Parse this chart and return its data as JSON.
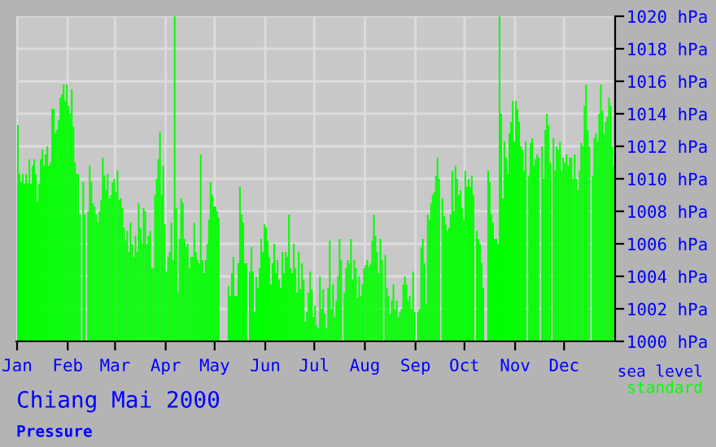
{
  "chart_data": {
    "type": "bar",
    "title": "Chiang Mai 2000",
    "annotations": [
      "Pressure",
      "sea level"
    ],
    "xlim": [
      "1999-12-31T12:00",
      "2001-01-01T06:00"
    ],
    "xticks": [
      {
        "value": "2000-01-01",
        "label": "Jan"
      },
      {
        "value": "2000-02-01",
        "label": "Feb"
      },
      {
        "value": "2000-03-01",
        "label": "Mar"
      },
      {
        "value": "2000-04-01",
        "label": "Apr"
      },
      {
        "value": "2000-05-01",
        "label": "May"
      },
      {
        "value": "2000-06-01",
        "label": "Jun"
      },
      {
        "value": "2000-07-01",
        "label": "Jul"
      },
      {
        "value": "2000-08-01",
        "label": "Aug"
      },
      {
        "value": "2000-09-01",
        "label": "Sep"
      },
      {
        "value": "2000-10-01",
        "label": "Oct"
      },
      {
        "value": "2000-11-01",
        "label": "Nov"
      },
      {
        "value": "2000-12-01",
        "label": "Dec"
      }
    ],
    "ylim": [
      1000,
      1020
    ],
    "yticks": [
      {
        "value": 1000,
        "label": "1000 hPa"
      },
      {
        "value": 1002,
        "label": "1002 hPa"
      },
      {
        "value": 1004,
        "label": "1004 hPa"
      },
      {
        "value": 1006,
        "label": "1006 hPa"
      },
      {
        "value": 1008,
        "label": "1008 hPa"
      },
      {
        "value": 1010,
        "label": "1010 hPa"
      },
      {
        "value": 1012,
        "label": "1012 hPa"
      },
      {
        "value": 1014,
        "label": "1014 hPa"
      },
      {
        "value": 1016,
        "label": "1016 hPa"
      },
      {
        "value": 1018,
        "label": "1018 hPa"
      },
      {
        "value": 1020,
        "label": "1020 hPa"
      }
    ],
    "grid": true,
    "legend": "bottom right",
    "x": [
      "2000-01-01",
      "2000-01-02",
      "2000-01-03",
      "2000-01-04",
      "2000-01-05",
      "2000-01-06",
      "2000-01-07",
      "2000-01-08",
      "2000-01-09",
      "2000-01-10",
      "2000-01-11",
      "2000-01-12",
      "2000-01-13",
      "2000-01-14",
      "2000-01-15",
      "2000-01-16",
      "2000-01-17",
      "2000-01-18",
      "2000-01-19",
      "2000-01-20",
      "2000-01-21",
      "2000-01-22",
      "2000-01-23",
      "2000-01-24",
      "2000-01-25",
      "2000-01-26",
      "2000-01-27",
      "2000-01-28",
      "2000-01-29",
      "2000-01-30",
      "2000-01-31",
      "2000-02-01",
      "2000-02-02",
      "2000-02-03",
      "2000-02-04",
      "2000-02-05",
      "2000-02-06",
      "2000-02-07",
      "2000-02-08",
      "2000-02-09",
      "2000-02-10",
      "2000-02-11",
      "2000-02-12",
      "2000-02-13",
      "2000-02-14",
      "2000-02-15",
      "2000-02-16",
      "2000-02-17",
      "2000-02-18",
      "2000-02-19",
      "2000-02-20",
      "2000-02-21",
      "2000-02-22",
      "2000-02-23",
      "2000-02-24",
      "2000-02-25",
      "2000-02-26",
      "2000-02-27",
      "2000-02-28",
      "2000-02-29",
      "2000-03-01",
      "2000-03-02",
      "2000-03-03",
      "2000-03-04",
      "2000-03-05",
      "2000-03-06",
      "2000-03-07",
      "2000-03-08",
      "2000-03-09",
      "2000-03-10",
      "2000-03-11",
      "2000-03-12",
      "2000-03-13",
      "2000-03-14",
      "2000-03-15",
      "2000-03-16",
      "2000-03-17",
      "2000-03-18",
      "2000-03-19",
      "2000-03-20",
      "2000-03-21",
      "2000-03-22",
      "2000-03-23",
      "2000-03-24",
      "2000-03-25",
      "2000-03-26",
      "2000-03-27",
      "2000-03-28",
      "2000-03-29",
      "2000-03-30",
      "2000-03-31",
      "2000-04-01",
      "2000-04-02",
      "2000-04-03",
      "2000-04-04",
      "2000-04-05",
      "2000-04-06",
      "2000-04-07",
      "2000-04-08",
      "2000-04-09",
      "2000-04-10",
      "2000-04-11",
      "2000-04-12",
      "2000-04-13",
      "2000-04-14",
      "2000-04-15",
      "2000-04-16",
      "2000-04-17",
      "2000-04-18",
      "2000-04-19",
      "2000-04-20",
      "2000-04-21",
      "2000-04-22",
      "2000-04-23",
      "2000-04-24",
      "2000-04-25",
      "2000-04-26",
      "2000-04-27",
      "2000-04-28",
      "2000-04-29",
      "2000-04-30",
      "2000-05-01",
      "2000-05-02",
      "2000-05-03",
      "2000-05-04",
      "2000-05-05",
      "2000-05-06",
      "2000-05-07",
      "2000-05-08",
      "2000-05-09",
      "2000-05-10",
      "2000-05-11",
      "2000-05-12",
      "2000-05-13",
      "2000-05-14",
      "2000-05-15",
      "2000-05-16",
      "2000-05-17",
      "2000-05-18",
      "2000-05-19",
      "2000-05-20",
      "2000-05-21",
      "2000-05-22",
      "2000-05-23",
      "2000-05-24",
      "2000-05-25",
      "2000-05-26",
      "2000-05-27",
      "2000-05-28",
      "2000-05-29",
      "2000-05-30",
      "2000-05-31",
      "2000-06-01",
      "2000-06-02",
      "2000-06-03",
      "2000-06-04",
      "2000-06-05",
      "2000-06-06",
      "2000-06-07",
      "2000-06-08",
      "2000-06-09",
      "2000-06-10",
      "2000-06-11",
      "2000-06-12",
      "2000-06-13",
      "2000-06-14",
      "2000-06-15",
      "2000-06-16",
      "2000-06-17",
      "2000-06-18",
      "2000-06-19",
      "2000-06-20",
      "2000-06-21",
      "2000-06-22",
      "2000-06-23",
      "2000-06-24",
      "2000-06-25",
      "2000-06-26",
      "2000-06-27",
      "2000-06-28",
      "2000-06-29",
      "2000-06-30",
      "2000-07-01",
      "2000-07-02",
      "2000-07-03",
      "2000-07-04",
      "2000-07-05",
      "2000-07-06",
      "2000-07-07",
      "2000-07-08",
      "2000-07-09",
      "2000-07-10",
      "2000-07-11",
      "2000-07-12",
      "2000-07-13",
      "2000-07-14",
      "2000-07-15",
      "2000-07-16",
      "2000-07-17",
      "2000-07-18",
      "2000-07-19",
      "2000-07-20",
      "2000-07-21",
      "2000-07-22",
      "2000-07-23",
      "2000-07-24",
      "2000-07-25",
      "2000-07-26",
      "2000-07-27",
      "2000-07-28",
      "2000-07-29",
      "2000-07-30",
      "2000-07-31",
      "2000-08-01",
      "2000-08-02",
      "2000-08-03",
      "2000-08-04",
      "2000-08-05",
      "2000-08-06",
      "2000-08-07",
      "2000-08-08",
      "2000-08-09",
      "2000-08-10",
      "2000-08-11",
      "2000-08-12",
      "2000-08-13",
      "2000-08-14",
      "2000-08-15",
      "2000-08-16",
      "2000-08-17",
      "2000-08-18",
      "2000-08-19",
      "2000-08-20",
      "2000-08-21",
      "2000-08-22",
      "2000-08-23",
      "2000-08-24",
      "2000-08-25",
      "2000-08-26",
      "2000-08-27",
      "2000-08-28",
      "2000-08-29",
      "2000-08-30",
      "2000-08-31",
      "2000-09-01",
      "2000-09-02",
      "2000-09-03",
      "2000-09-04",
      "2000-09-05",
      "2000-09-06",
      "2000-09-07",
      "2000-09-08",
      "2000-09-09",
      "2000-09-10",
      "2000-09-11",
      "2000-09-12",
      "2000-09-13",
      "2000-09-14",
      "2000-09-15",
      "2000-09-16",
      "2000-09-17",
      "2000-09-18",
      "2000-09-19",
      "2000-09-20",
      "2000-09-21",
      "2000-09-22",
      "2000-09-23",
      "2000-09-24",
      "2000-09-25",
      "2000-09-26",
      "2000-09-27",
      "2000-09-28",
      "2000-09-29",
      "2000-09-30",
      "2000-10-01",
      "2000-10-02",
      "2000-10-03",
      "2000-10-04",
      "2000-10-05",
      "2000-10-06",
      "2000-10-07",
      "2000-10-08",
      "2000-10-09",
      "2000-10-10",
      "2000-10-11",
      "2000-10-12",
      "2000-10-13",
      "2000-10-14",
      "2000-10-15",
      "2000-10-16",
      "2000-10-17",
      "2000-10-18",
      "2000-10-19",
      "2000-10-20",
      "2000-10-21",
      "2000-10-22",
      "2000-10-23",
      "2000-10-24",
      "2000-10-25",
      "2000-10-26",
      "2000-10-27",
      "2000-10-28",
      "2000-10-29",
      "2000-10-30",
      "2000-10-31",
      "2000-11-01",
      "2000-11-02",
      "2000-11-03",
      "2000-11-04",
      "2000-11-05",
      "2000-11-06",
      "2000-11-07",
      "2000-11-08",
      "2000-11-09",
      "2000-11-10",
      "2000-11-11",
      "2000-11-12",
      "2000-11-13",
      "2000-11-14",
      "2000-11-15",
      "2000-11-16",
      "2000-11-17",
      "2000-11-18",
      "2000-11-19",
      "2000-11-20",
      "2000-11-21",
      "2000-11-22",
      "2000-11-23",
      "2000-11-24",
      "2000-11-25",
      "2000-11-26",
      "2000-11-27",
      "2000-11-28",
      "2000-11-29",
      "2000-11-30",
      "2000-12-01",
      "2000-12-02",
      "2000-12-03",
      "2000-12-04",
      "2000-12-05",
      "2000-12-06",
      "2000-12-07",
      "2000-12-08",
      "2000-12-09",
      "2000-12-10",
      "2000-12-11",
      "2000-12-12",
      "2000-12-13",
      "2000-12-14",
      "2000-12-15",
      "2000-12-16",
      "2000-12-17",
      "2000-12-18",
      "2000-12-19",
      "2000-12-20",
      "2000-12-21",
      "2000-12-22",
      "2000-12-23",
      "2000-12-24",
      "2000-12-25",
      "2000-12-26",
      "2000-12-27",
      "2000-12-28",
      "2000-12-29",
      "2000-12-30",
      "2000-12-31"
    ],
    "series": [
      {
        "name": "standard",
        "color": "#00ff00",
        "values": [
          1013.3,
          1010.3,
          1009.8,
          1010.3,
          1009.7,
          1010.3,
          1009.7,
          1011.2,
          1009.7,
          1010.8,
          1011.2,
          1010.3,
          1008.6,
          1009.7,
          1011.2,
          1011.8,
          1010.8,
          1011.5,
          1012.0,
          1010.8,
          1011.0,
          1014.3,
          1014.3,
          1012.8,
          1013.0,
          1013.6,
          1015.0,
          1015.2,
          1015.8,
          1014.8,
          1015.8,
          1014.5,
          1014.0,
          1015.5,
          1013.2,
          1011.0,
          1010.3,
          1010.3,
          1007.8,
          null,
          1009.8,
          1007.8,
          null,
          1008.0,
          1010.8,
          1009.8,
          1008.5,
          1008.3,
          1007.8,
          1007.3,
          1008.0,
          1008.7,
          1011.3,
          1010.2,
          1009.3,
          1010.3,
          1008.8,
          1009.0,
          1009.8,
          1010.0,
          1009.2,
          1010.5,
          1008.7,
          1008.8,
          1008.2,
          1007.0,
          1006.2,
          1006.8,
          1005.5,
          1007.3,
          1006.0,
          1005.2,
          1006.5,
          1005.5,
          1008.5,
          1007.0,
          1006.0,
          1008.2,
          1008.0,
          1006.0,
          1006.5,
          1006.8,
          1004.5,
          1004.5,
          1009.0,
          1010.0,
          1011.2,
          1012.9,
          1009.0,
          1010.8,
          1007.2,
          1004.3,
          1005.2,
          1005.5,
          1007.3,
          1005.0,
          1020.0,
          1008.2,
          1003.0,
          1006.3,
          1008.8,
          1008.5,
          1006.3,
          1005.8,
          1006.0,
          1004.5,
          1005.2,
          1005.2,
          1007.3,
          1005.5,
          1005.0,
          1004.8,
          1011.5,
          1005.0,
          1004.2,
          1005.0,
          1006.0,
          1007.5,
          1009.8,
          1009.0,
          1008.3,
          1008.3,
          1008.0,
          1007.6,
          null,
          null,
          null,
          null,
          null,
          1003.4,
          1002.8,
          1004.2,
          1005.2,
          1002.8,
          1002.8,
          1004.8,
          1009.5,
          1007.8,
          1007.3,
          1004.8,
          1004.8,
          null,
          1004.3,
          1005.8,
          1004.3,
          1001.8,
          1004.0,
          1003.3,
          1004.5,
          1006.3,
          1005.5,
          1007.2,
          1007.0,
          1006.2,
          1005.2,
          1003.5,
          1004.8,
          1006.0,
          1004.2,
          1005.0,
          1003.8,
          1003.3,
          1005.5,
          1004.2,
          1005.5,
          1005.2,
          1007.8,
          1004.5,
          1004.2,
          1006.0,
          1004.5,
          1003.0,
          1005.5,
          1003.2,
          1004.8,
          1003.8,
          1001.2,
          1001.8,
          1003.0,
          1004.3,
          1003.2,
          1001.5,
          1002.2,
          1001.0,
          1000.8,
          1004.0,
          1002.0,
          1003.2,
          1001.7,
          1000.8,
          1003.3,
          1006.2,
          1002.0,
          1003.5,
          1001.5,
          1002.5,
          1004.0,
          1006.3,
          1005.0,
          null,
          1003.0,
          1004.5,
          1005.0,
          1004.8,
          1006.3,
          1003.8,
          1005.0,
          1004.5,
          1002.7,
          1004.0,
          1002.8,
          1003.5,
          1004.5,
          1004.7,
          1005.0,
          1004.6,
          1004.8,
          1006.2,
          1007.8,
          1006.5,
          1005.5,
          1004.2,
          1006.3,
          1005.0,
          null,
          1005.3,
          1003.3,
          1002.8,
          1001.7,
          1002.5,
          1003.5,
          1002.0,
          1002.5,
          1001.5,
          1001.8,
          1002.0,
          1003.5,
          1004.0,
          1003.5,
          1002.5,
          1002.8,
          1002.0,
          1004.3,
          1001.8,
          null,
          1001.8,
          1002.0,
          1005.8,
          1006.3,
          1004.8,
          1002.3,
          1007.8,
          1007.5,
          1008.5,
          1009.0,
          1009.2,
          1010.2,
          1011.3,
          1010.0,
          null,
          1008.8,
          1007.7,
          1007.2,
          1006.8,
          1007.0,
          1007.8,
          1010.5,
          1008.0,
          1010.8,
          1010.0,
          1009.0,
          1009.3,
          1008.2,
          1007.5,
          1010.5,
          1009.5,
          1010.0,
          1009.5,
          1010.2,
          1009.0,
          null,
          1006.8,
          1006.3,
          1006.0,
          1004.8,
          1003.3,
          null,
          null,
          1010.5,
          1009.8,
          1007.8,
          1007.3,
          1006.3,
          1006.3,
          1006.0,
          1020.0,
          1014.0,
          1008.8,
          1012.3,
          1011.3,
          1010.3,
          1012.8,
          1013.5,
          1014.8,
          1012.3,
          1014.8,
          1014.3,
          1013.5,
          1012.0,
          1011.8,
          1010.5,
          1012.3,
          null,
          1010.2,
          1012.2,
          1012.5,
          1010.8,
          1011.2,
          1011.5,
          1011.3,
          null,
          1012.0,
          1010.0,
          1013.0,
          1014.0,
          1013.3,
          1011.0,
          null,
          1012.5,
          1010.5,
          1012.0,
          1011.8,
          1012.3,
          1010.5,
          1011.3,
          1011.0,
          1011.5,
          1010.8,
          1011.3,
          1011.3,
          1010.0,
          1011.5,
          1010.0,
          1009.3,
          1010.5,
          1012.2,
          1012.0,
          1014.5,
          1015.8,
          1013.0,
          1012.0,
          null,
          1010.2,
          1012.5,
          1012.8,
          1012.3,
          1014.0,
          1015.8,
          1014.2,
          1012.8,
          1013.5,
          1013.8,
          1015.0,
          1014.5,
          1012.0,
          1010.8
        ]
      }
    ]
  }
}
